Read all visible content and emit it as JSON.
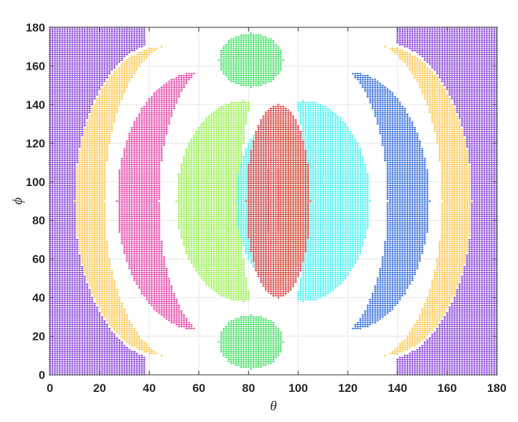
{
  "chart_data": {
    "type": "scatter",
    "title": "",
    "xlabel": "θ",
    "ylabel": "ϕ",
    "xlim": [
      0,
      180
    ],
    "ylim": [
      0,
      180
    ],
    "xticks": [
      0,
      20,
      40,
      60,
      80,
      100,
      120,
      140,
      160,
      180
    ],
    "yticks": [
      0,
      20,
      40,
      60,
      80,
      100,
      120,
      140,
      160,
      180
    ],
    "grid": true,
    "legend": "none",
    "marker": "+",
    "marker_spacing_deg": 1,
    "regions": [
      {
        "color": "#7b2fd4",
        "shape": "outer-left",
        "theta_max": 38,
        "notch_center": [
          45,
          90
        ],
        "notch_radius": [
          35,
          82
        ]
      },
      {
        "color": "#7b2fd4",
        "shape": "outer-right",
        "theta_min": 140,
        "notch_center": [
          135,
          90
        ],
        "notch_radius": [
          35,
          82
        ]
      },
      {
        "color": "#ffc23d",
        "shape": "crescent",
        "outer_center": [
          45,
          90
        ],
        "outer_radius": [
          35,
          80
        ],
        "inner_center": [
          52,
          90
        ],
        "inner_radius": [
          30,
          82
        ]
      },
      {
        "color": "#ffc23d",
        "shape": "crescent",
        "outer_center": [
          135,
          90
        ],
        "outer_radius": [
          35,
          80
        ],
        "inner_center": [
          128,
          90
        ],
        "inner_radius": [
          30,
          82
        ]
      },
      {
        "color": "#e0339e",
        "shape": "crescent",
        "outer_center": [
          60,
          90
        ],
        "outer_radius": [
          33,
          67
        ],
        "inner_center": [
          68,
          90
        ],
        "inner_radius": [
          24,
          72
        ]
      },
      {
        "color": "#1f5fd6",
        "shape": "crescent",
        "outer_center": [
          120,
          90
        ],
        "outer_radius": [
          33,
          67
        ],
        "inner_center": [
          112,
          90
        ],
        "inner_radius": [
          24,
          72
        ]
      },
      {
        "color": "#8ef03a",
        "shape": "crescent",
        "outer_center": [
          78,
          90
        ],
        "outer_radius": [
          27,
          52
        ],
        "inner_center": [
          85,
          90
        ],
        "inner_radius": [
          8,
          60
        ]
      },
      {
        "color": "#33f0f0",
        "shape": "crescent",
        "outer_center": [
          102,
          90
        ],
        "outer_radius": [
          27,
          52
        ],
        "inner_center": [
          95,
          90
        ],
        "inner_radius": [
          8,
          60
        ]
      },
      {
        "color": "#d92b2b",
        "shape": "ellipse",
        "center": [
          92,
          90
        ],
        "radius": [
          13,
          50
        ]
      },
      {
        "color": "#33dd55",
        "shape": "ellipse",
        "center": [
          81,
          163
        ],
        "radius": [
          13,
          14
        ]
      },
      {
        "color": "#33dd55",
        "shape": "ellipse",
        "center": [
          81,
          17
        ],
        "radius": [
          13,
          14
        ]
      }
    ]
  }
}
